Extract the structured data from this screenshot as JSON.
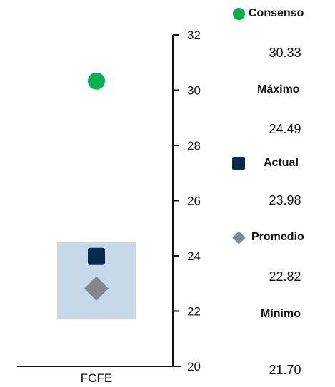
{
  "colors": {
    "consenso": "#00b050",
    "actual": "#0b2a4f",
    "promedio": "#7f8890",
    "range_band": "#c5d9e8",
    "axis": "#111111"
  },
  "legend": {
    "consenso_label": "Consenso",
    "consenso_value": "30.33",
    "maximo_label": "Máximo",
    "maximo_value": "24.49",
    "actual_label": "Actual",
    "actual_value": "23.98",
    "promedio_label": "Promedio",
    "promedio_value": "22.82",
    "minimo_label": "Mínimo",
    "minimo_value": "21.70"
  },
  "chart_data": {
    "type": "scatter",
    "title": "",
    "xlabel": "",
    "ylabel": "",
    "categories": [
      "FCFE"
    ],
    "ylim": [
      20,
      32
    ],
    "yticks": [
      20,
      22,
      24,
      26,
      28,
      30,
      32
    ],
    "y_axis_position": "right",
    "grid": false,
    "legend_position": "right",
    "range": {
      "name": "Máximo / Mínimo",
      "min": 21.7,
      "max": 24.49
    },
    "series": [
      {
        "name": "Consenso",
        "marker": "circle",
        "values": [
          30.33
        ]
      },
      {
        "name": "Actual",
        "marker": "square",
        "values": [
          23.98
        ]
      },
      {
        "name": "Promedio",
        "marker": "diamond",
        "values": [
          22.82
        ]
      }
    ]
  }
}
